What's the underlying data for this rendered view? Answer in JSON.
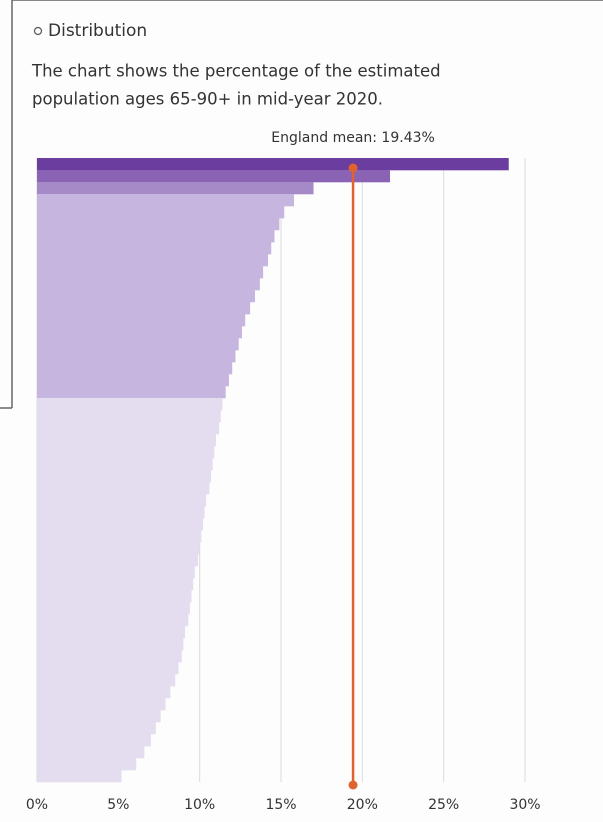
{
  "chart_data": {
    "type": "bar",
    "orientation": "horizontal",
    "title": "Distribution",
    "subtitle_lines": [
      "The chart shows the percentage of the estimated",
      "population ages 65-90+ in mid-year 2020."
    ],
    "annotation": "England mean: 19.43%",
    "mean": 19.43,
    "mean_color": "#e0622f",
    "values": [
      29.0,
      21.7,
      17.0,
      15.8,
      15.2,
      14.9,
      14.6,
      14.4,
      14.2,
      13.9,
      13.7,
      13.4,
      13.1,
      12.8,
      12.6,
      12.4,
      12.2,
      12.0,
      11.8,
      11.6,
      11.4,
      11.3,
      11.2,
      11.0,
      10.9,
      10.8,
      10.7,
      10.6,
      10.4,
      10.3,
      10.2,
      10.1,
      10.0,
      9.9,
      9.7,
      9.6,
      9.5,
      9.4,
      9.3,
      9.1,
      9.0,
      8.9,
      8.7,
      8.5,
      8.2,
      7.9,
      7.6,
      7.3,
      7.0,
      6.6,
      6.1,
      5.2
    ],
    "colors": [
      "#6a3d9e",
      "#8a63b4",
      "#a68ac8",
      "#c6b5de",
      "#c6b5de",
      "#c6b5de",
      "#c6b5de",
      "#c6b5de",
      "#c6b5de",
      "#c6b5de",
      "#c6b5de",
      "#c6b5de",
      "#c6b5de",
      "#c6b5de",
      "#c6b5de",
      "#c6b5de",
      "#c6b5de",
      "#c6b5de",
      "#c6b5de",
      "#c6b5de",
      "#e4dcef",
      "#e4dcef",
      "#e4dcef",
      "#e4dcef",
      "#e4dcef",
      "#e4dcef",
      "#e4dcef",
      "#e4dcef",
      "#e4dcef",
      "#e4dcef",
      "#e4dcef",
      "#e4dcef",
      "#e4dcef",
      "#e4dcef",
      "#e4dcef",
      "#e4dcef",
      "#e4dcef",
      "#e4dcef",
      "#e4dcef",
      "#e4dcef",
      "#e4dcef",
      "#e4dcef",
      "#e4dcef",
      "#e4dcef",
      "#e4dcef",
      "#e4dcef",
      "#e4dcef",
      "#e4dcef",
      "#e4dcef",
      "#e4dcef",
      "#e4dcef",
      "#e4dcef"
    ],
    "xlim": [
      0,
      30
    ],
    "xticks": [
      {
        "value": 0,
        "label": "0%"
      },
      {
        "value": 5,
        "label": "5%"
      },
      {
        "value": 10,
        "label": "10%"
      },
      {
        "value": 15,
        "label": "15%"
      },
      {
        "value": 20,
        "label": "20%"
      },
      {
        "value": 25,
        "label": "25%"
      },
      {
        "value": 30,
        "label": "30%"
      }
    ],
    "grid": true
  }
}
